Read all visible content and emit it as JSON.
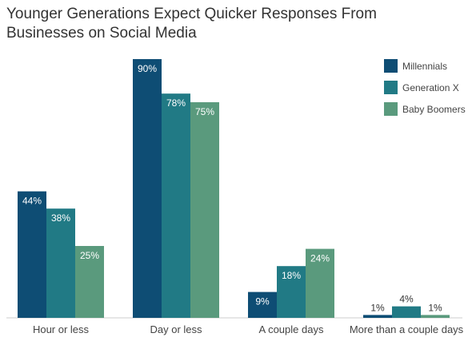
{
  "chart_data": {
    "type": "bar",
    "title": "Younger Generations Expect Quicker Responses From Businesses on Social Media",
    "categories": [
      "Hour or less",
      "Day or less",
      "A couple days",
      "More than a couple days"
    ],
    "series": [
      {
        "name": "Millennials",
        "values": [
          44,
          90,
          9,
          1
        ],
        "labels": [
          "44%",
          "90%",
          "9%",
          "1%"
        ],
        "color": "#0e4d74"
      },
      {
        "name": "Generation X",
        "values": [
          38,
          78,
          18,
          4
        ],
        "labels": [
          "38%",
          "78%",
          "18%",
          "4%"
        ],
        "color": "#217a85"
      },
      {
        "name": "Baby Boomers",
        "values": [
          25,
          75,
          24,
          1
        ],
        "labels": [
          "25%",
          "75%",
          "24%",
          "1%"
        ],
        "color": "#5a9a7d"
      }
    ],
    "ylim": [
      0,
      90
    ],
    "legend": "top-right",
    "grid": false
  }
}
